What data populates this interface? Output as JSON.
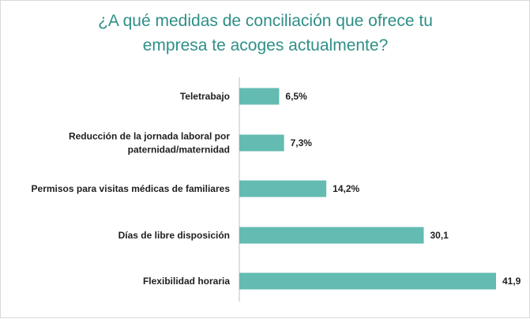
{
  "colors": {
    "bar": "#63bbb2",
    "title": "#2e8f87",
    "axis": "#bfbfbf",
    "text": "#1f1f1f"
  },
  "chart_data": {
    "type": "bar",
    "orientation": "horizontal",
    "title_lines": [
      "¿A qué medidas de conciliación que ofrece tu",
      "empresa te acoges actualmente?"
    ],
    "categories": [
      "Teletrabajo",
      "Reducción de la jornada laboral por paternidad/maternidad",
      "Permisos para visitas médicas de familiares",
      "Días de libre disposición",
      "Flexibilidad horaria"
    ],
    "category_lines": [
      [
        "Teletrabajo"
      ],
      [
        "Reducción de la jornada laboral por",
        "paternidad/maternidad"
      ],
      [
        "Permisos para visitas médicas de familiares"
      ],
      [
        "Días de libre disposición"
      ],
      [
        "Flexibilidad horaria"
      ]
    ],
    "values": [
      6.5,
      7.3,
      14.2,
      30.1,
      41.9
    ],
    "value_labels": [
      "6,5%",
      "7,3%",
      "14,2%",
      "30,1",
      "41,9"
    ],
    "xlim": [
      0,
      41.9
    ],
    "grid": false,
    "legend": "none"
  }
}
